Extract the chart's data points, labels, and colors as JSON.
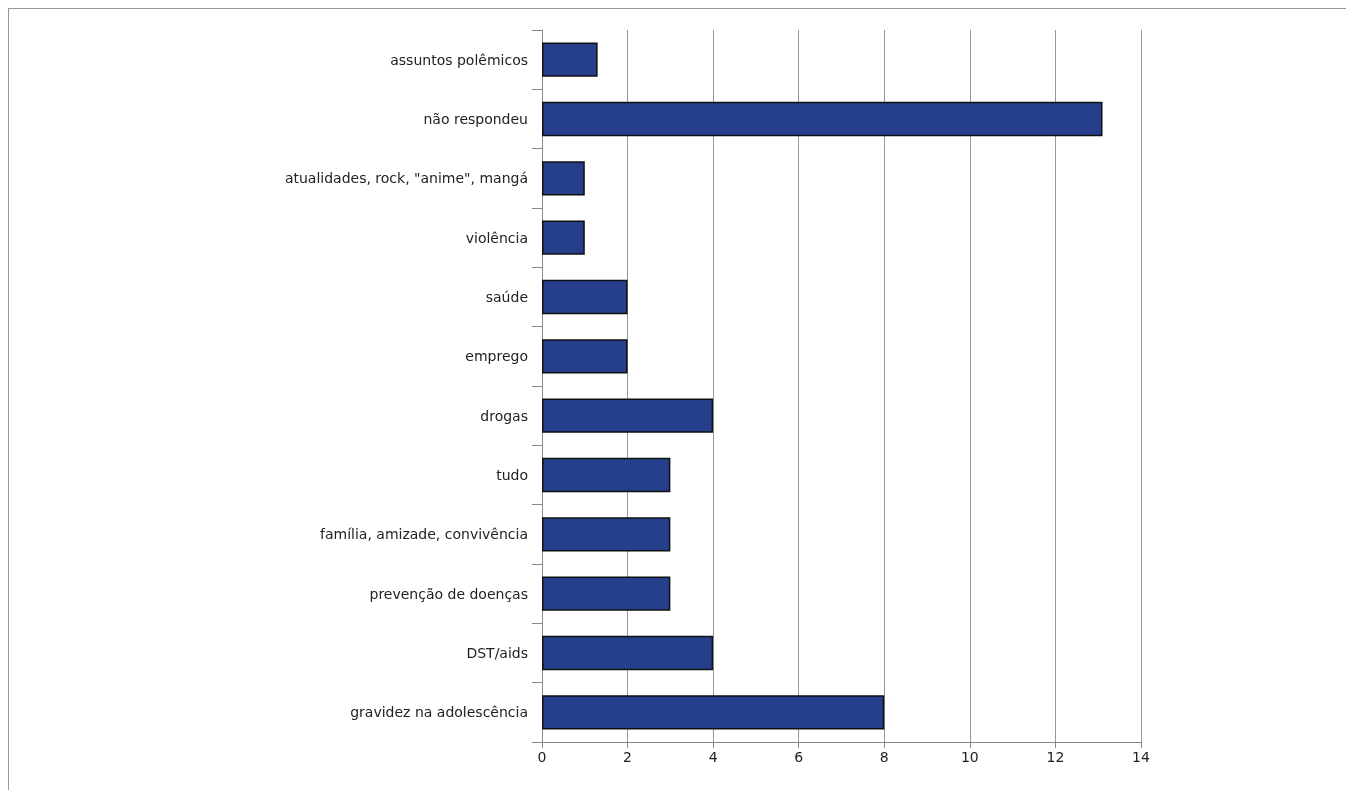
{
  "chart_data": {
    "type": "bar",
    "orientation": "horizontal",
    "categories": [
      "assuntos polêmicos",
      "não respondeu",
      "atualidades, rock, \"anime\", mangá",
      "violência",
      "saúde",
      "emprego",
      "drogas",
      "tudo",
      "família, amizade, convivência",
      "prevenção de doenças",
      "DST/aids",
      "gravidez na adolescência"
    ],
    "series": [
      {
        "color": "#253f8c",
        "values": [
          1.3,
          13.1,
          1,
          1,
          2,
          2,
          4,
          3,
          3,
          3,
          4,
          8
        ]
      }
    ],
    "xlim": [
      0,
      14
    ],
    "xticks": [
      0,
      2,
      4,
      6,
      8,
      10,
      12,
      14
    ],
    "grid": "x"
  }
}
